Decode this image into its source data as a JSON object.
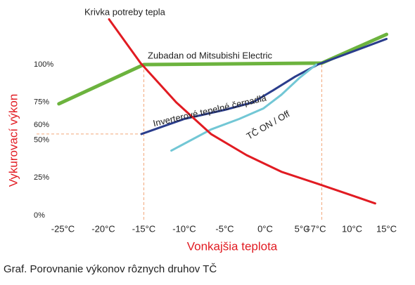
{
  "chart_data": {
    "type": "line",
    "title": "Graf. Porovnanie výkonov rôznych druhov TČ",
    "x_label": "Vonkajšia teplota",
    "y_label": "Vykurovací výkon",
    "xlim": [
      -27,
      17
    ],
    "ylim": [
      0,
      130
    ],
    "xticks": [
      {
        "value": -25,
        "label": "-25°C"
      },
      {
        "value": -20,
        "label": "-20°C"
      },
      {
        "value": -15,
        "label": "-15°C"
      },
      {
        "value": -10,
        "label": "-10°C"
      },
      {
        "value": -5,
        "label": "-5°C"
      },
      {
        "value": 0,
        "label": "0°C"
      },
      {
        "value": 5,
        "label": "5°C"
      },
      {
        "value": 7,
        "label": "+7°C"
      },
      {
        "value": 10,
        "label": "10°C"
      },
      {
        "value": 15,
        "label": "15°C"
      }
    ],
    "yticks": [
      {
        "value": 0,
        "label": "0%"
      },
      {
        "value": 25,
        "label": "25%"
      },
      {
        "value": 50,
        "label": "50%"
      },
      {
        "value": 60,
        "label": "60%"
      },
      {
        "value": 75,
        "label": "75%"
      },
      {
        "value": 100,
        "label": "100%"
      }
    ],
    "reference_x": [
      -15,
      7
    ],
    "reference_y": 54,
    "reference_color": "#f2a77a",
    "series": [
      {
        "name": "Zubadan od Mitsubishi Electric",
        "color": "#6cb33e",
        "x": [
          -25.5,
          -15,
          7,
          15
        ],
        "values": [
          74,
          100,
          101,
          120
        ]
      },
      {
        "name": "Inverterové tepelné čerpadlá",
        "color": "#2a3d8c",
        "x": [
          -15.3,
          -10,
          -5,
          -1.5,
          1,
          3.7,
          6.5,
          15
        ],
        "values": [
          54,
          64,
          70,
          75,
          83,
          92,
          100,
          117
        ]
      },
      {
        "name": "TČ  ON / Off",
        "color": "#72c7d5",
        "x": [
          -11.6,
          -6.7,
          -3.2,
          -0.2,
          2,
          4.2,
          6.3
        ],
        "values": [
          43,
          57,
          64,
          71,
          80,
          91,
          100
        ]
      },
      {
        "name": "Krivka potreby tepla",
        "color": "#e11b22",
        "x": [
          -19.3,
          -15.4,
          -11,
          -6.7,
          -2.3,
          2,
          6.5,
          10.9,
          13.6
        ],
        "values": [
          130,
          101,
          75,
          54,
          40,
          29,
          21,
          13,
          8
        ]
      }
    ]
  }
}
